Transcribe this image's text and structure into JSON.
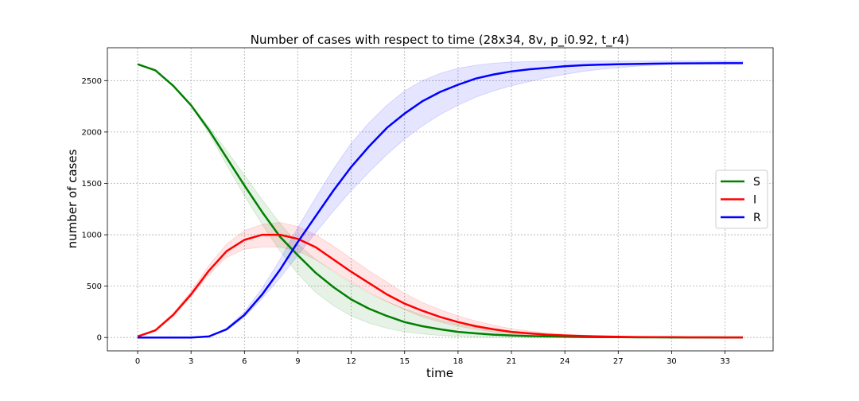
{
  "chart_data": {
    "type": "line",
    "title": "Number of cases with respect to time (28x34, 8v, p_i0.92, t_r4)",
    "xlabel": "time",
    "ylabel": "number of cases",
    "xlim": [
      -1.7,
      35.7
    ],
    "ylim": [
      -130,
      2820
    ],
    "xticks": [
      0,
      3,
      6,
      9,
      12,
      15,
      18,
      21,
      24,
      27,
      30,
      33
    ],
    "yticks": [
      0,
      500,
      1000,
      1500,
      2000,
      2500
    ],
    "grid": true,
    "legend_position": "center-right",
    "x": [
      0,
      1,
      2,
      3,
      4,
      5,
      6,
      7,
      8,
      9,
      10,
      11,
      12,
      13,
      14,
      15,
      16,
      17,
      18,
      19,
      20,
      21,
      22,
      23,
      24,
      25,
      26,
      27,
      28,
      29,
      30,
      31,
      32,
      33,
      34
    ],
    "series": [
      {
        "name": "S",
        "color": "#008000",
        "values": [
          2660,
          2600,
          2450,
          2260,
          2020,
          1750,
          1480,
          1220,
          980,
          800,
          630,
          490,
          370,
          280,
          210,
          150,
          110,
          80,
          55,
          40,
          28,
          20,
          14,
          10,
          7,
          5,
          4,
          3,
          2,
          2,
          1,
          1,
          1,
          1,
          1
        ],
        "band_lower": [
          2660,
          2600,
          2450,
          2250,
          1990,
          1680,
          1380,
          1100,
          840,
          620,
          440,
          310,
          210,
          140,
          90,
          55,
          35,
          20,
          12,
          7,
          4,
          2,
          1,
          1,
          0,
          0,
          0,
          0,
          0,
          0,
          0,
          0,
          0,
          0,
          0
        ],
        "band_upper": [
          2660,
          2600,
          2460,
          2270,
          2050,
          1820,
          1580,
          1340,
          1110,
          910,
          760,
          640,
          530,
          430,
          350,
          280,
          220,
          170,
          130,
          100,
          75,
          55,
          40,
          30,
          22,
          16,
          12,
          9,
          7,
          5,
          4,
          3,
          2,
          2,
          2
        ]
      },
      {
        "name": "I",
        "color": "#ff0000",
        "values": [
          10,
          70,
          220,
          420,
          650,
          840,
          950,
          1000,
          1000,
          960,
          880,
          760,
          640,
          530,
          420,
          330,
          260,
          200,
          150,
          110,
          80,
          55,
          40,
          28,
          20,
          14,
          10,
          7,
          5,
          4,
          3,
          2,
          2,
          1,
          1
        ],
        "band_lower": [
          10,
          70,
          210,
          400,
          610,
          780,
          860,
          880,
          880,
          840,
          760,
          650,
          540,
          440,
          350,
          270,
          200,
          150,
          110,
          80,
          55,
          37,
          25,
          17,
          12,
          8,
          6,
          4,
          3,
          2,
          1,
          1,
          1,
          1,
          0
        ],
        "band_upper": [
          10,
          80,
          240,
          450,
          700,
          910,
          1040,
          1100,
          1120,
          1080,
          1000,
          890,
          770,
          650,
          540,
          430,
          340,
          270,
          210,
          160,
          120,
          85,
          62,
          45,
          32,
          23,
          16,
          11,
          8,
          6,
          4,
          3,
          2,
          2,
          1
        ]
      },
      {
        "name": "R",
        "color": "#0000ff",
        "values": [
          0,
          0,
          0,
          0,
          10,
          80,
          220,
          420,
          660,
          930,
          1180,
          1430,
          1660,
          1860,
          2040,
          2180,
          2300,
          2390,
          2460,
          2520,
          2560,
          2590,
          2610,
          2625,
          2640,
          2650,
          2655,
          2660,
          2662,
          2665,
          2667,
          2668,
          2669,
          2670,
          2670
        ],
        "band_lower": [
          0,
          0,
          0,
          0,
          10,
          70,
          200,
          380,
          580,
          800,
          1020,
          1230,
          1430,
          1610,
          1780,
          1930,
          2060,
          2170,
          2260,
          2340,
          2400,
          2450,
          2490,
          2530,
          2560,
          2590,
          2610,
          2625,
          2640,
          2650,
          2658,
          2664,
          2667,
          2669,
          2670
        ],
        "band_upper": [
          0,
          0,
          0,
          0,
          12,
          90,
          250,
          480,
          760,
          1070,
          1360,
          1640,
          1890,
          2090,
          2260,
          2400,
          2500,
          2570,
          2620,
          2650,
          2670,
          2680,
          2685,
          2690,
          2690,
          2690,
          2690,
          2690,
          2690,
          2690,
          2690,
          2690,
          2690,
          2690,
          2690
        ]
      }
    ]
  }
}
